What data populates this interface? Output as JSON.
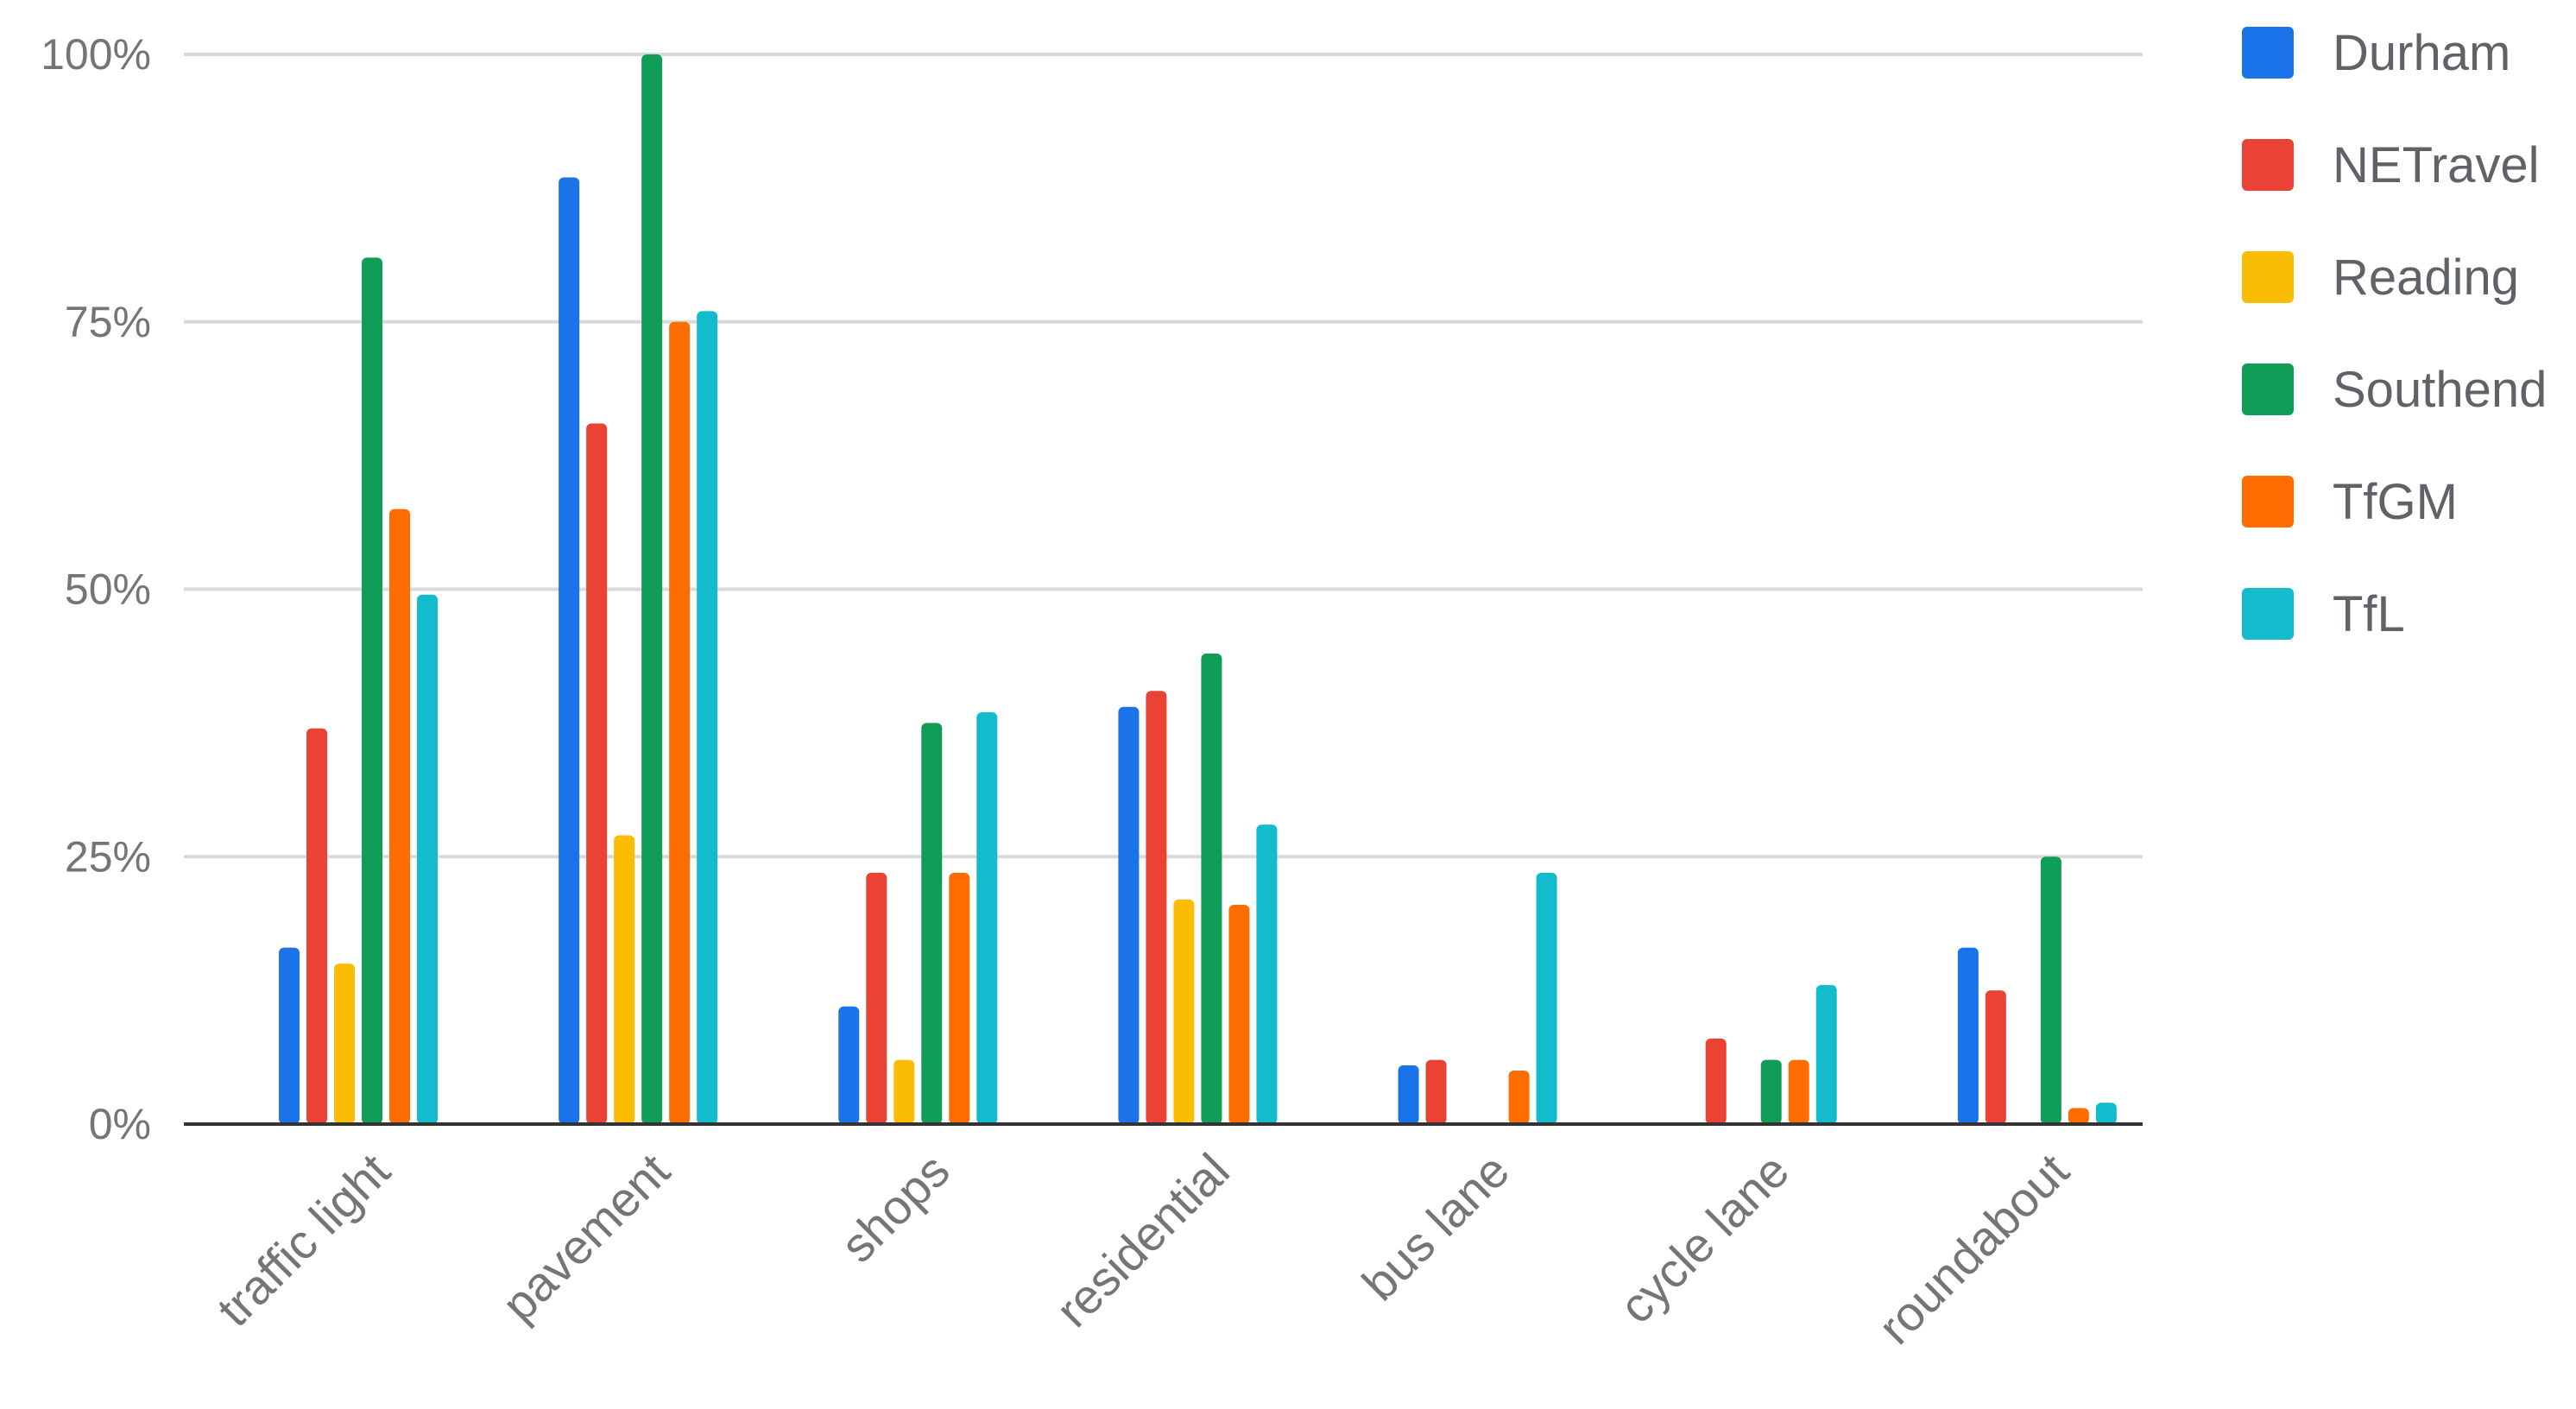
{
  "chart_data": {
    "type": "bar",
    "title": "",
    "xlabel": "",
    "ylabel": "",
    "ylim": [
      0,
      100
    ],
    "y_ticks": [
      0,
      25,
      50,
      75,
      100
    ],
    "y_tick_labels": [
      "0%",
      "25%",
      "50%",
      "75%",
      "100%"
    ],
    "grid": true,
    "legend_position": "right",
    "categories": [
      "traffic light",
      "pavement",
      "shops",
      "residential",
      "bus lane",
      "cycle lane",
      "roundabout"
    ],
    "series": [
      {
        "name": "Durham",
        "color": "#1a73e8",
        "values": [
          16.5,
          88.5,
          11,
          39,
          5.5,
          0,
          16.5
        ]
      },
      {
        "name": "NETravel",
        "color": "#ea4335",
        "values": [
          37,
          65.5,
          23.5,
          40.5,
          6,
          8,
          12.5
        ]
      },
      {
        "name": "Reading",
        "color": "#fbbc04",
        "values": [
          15,
          27,
          6,
          21,
          0,
          0,
          0
        ]
      },
      {
        "name": "Southend",
        "color": "#0f9d58",
        "values": [
          81,
          100,
          37.5,
          44,
          0,
          6,
          25
        ]
      },
      {
        "name": "TfGM",
        "color": "#ff6d00",
        "values": [
          57.5,
          75,
          23.5,
          20.5,
          5,
          6,
          1.5
        ]
      },
      {
        "name": "TfL",
        "color": "#12bccd",
        "values": [
          49.5,
          76,
          38.5,
          28,
          23.5,
          13,
          2
        ]
      }
    ]
  }
}
